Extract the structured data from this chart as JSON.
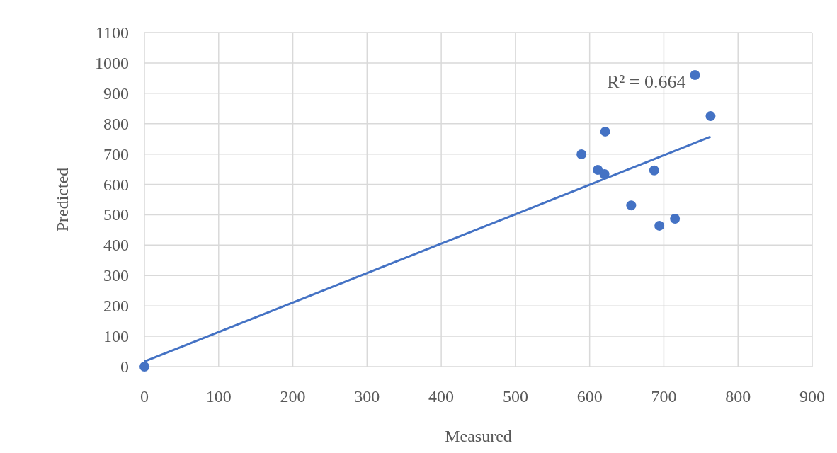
{
  "chart_data": {
    "type": "scatter",
    "xlabel": "Measured",
    "ylabel": "Predicted",
    "xlim": [
      0,
      900
    ],
    "xticks": [
      0,
      100,
      200,
      300,
      400,
      500,
      600,
      700,
      800,
      900
    ],
    "ylim": [
      0,
      1100
    ],
    "yticks": [
      0,
      100,
      200,
      300,
      400,
      500,
      600,
      700,
      800,
      900,
      1000,
      1100
    ],
    "grid": true,
    "annotations": [
      "R² = 0.664"
    ],
    "series": [
      {
        "color": "#4472c4",
        "marker": "circle",
        "x": [
          0,
          589,
          621,
          611,
          620,
          687,
          656,
          694,
          715,
          742,
          763
        ],
        "values": [
          0,
          699,
          774,
          648,
          634,
          646,
          531,
          464,
          487,
          960,
          825
        ]
      },
      {
        "type": "line",
        "color": "#4472c4",
        "x": [
          0,
          763
        ],
        "values": [
          17,
          757
        ],
        "line_style": "solid"
      }
    ]
  }
}
